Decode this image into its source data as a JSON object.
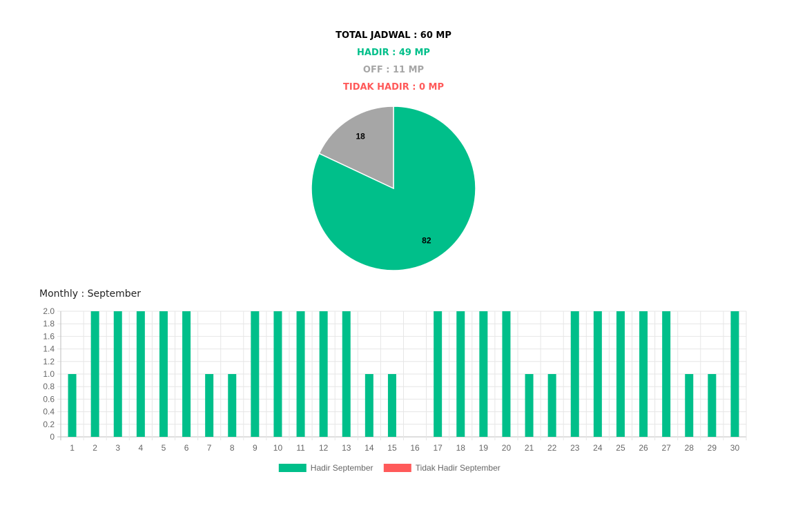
{
  "summary": {
    "total": "TOTAL JADWAL : 60 MP",
    "hadir": "HADIR : 49 MP",
    "off": "OFF : 11 MP",
    "tidak_hadir": "TIDAK HADIR : 0 MP"
  },
  "colors": {
    "hadir": "#00bf8a",
    "off": "#a6a6a6",
    "tidak_hadir": "#ff5a5a"
  },
  "monthly_title": "Monthly : September",
  "chart_data": [
    {
      "type": "pie",
      "slices": [
        {
          "label": "hadir",
          "value": 82,
          "color": "#00bf8a"
        },
        {
          "label": "off",
          "value": 18,
          "color": "#a6a6a6"
        }
      ],
      "data_labels": [
        "82",
        "18"
      ]
    },
    {
      "type": "bar",
      "categories": [
        "1",
        "2",
        "3",
        "4",
        "5",
        "6",
        "7",
        "8",
        "9",
        "10",
        "11",
        "12",
        "13",
        "14",
        "15",
        "16",
        "17",
        "18",
        "19",
        "20",
        "21",
        "22",
        "23",
        "24",
        "25",
        "26",
        "27",
        "28",
        "29",
        "30"
      ],
      "series": [
        {
          "name": "Hadir September",
          "color": "#00bf8a",
          "values": [
            1,
            2,
            2,
            2,
            2,
            2,
            1,
            1,
            2,
            2,
            2,
            2,
            2,
            1,
            1,
            0,
            2,
            2,
            2,
            2,
            1,
            1,
            2,
            2,
            2,
            2,
            2,
            1,
            1,
            2
          ]
        },
        {
          "name": "Tidak Hadir September",
          "color": "#ff5a5a",
          "values": [
            0,
            0,
            0,
            0,
            0,
            0,
            0,
            0,
            0,
            0,
            0,
            0,
            0,
            0,
            0,
            0,
            0,
            0,
            0,
            0,
            0,
            0,
            0,
            0,
            0,
            0,
            0,
            0,
            0,
            0
          ]
        }
      ],
      "ylim": [
        0,
        2
      ],
      "yticks": [
        "0",
        "0.2",
        "0.4",
        "0.6",
        "0.8",
        "1.0",
        "1.2",
        "1.4",
        "1.6",
        "1.8",
        "2.0"
      ],
      "grid": true,
      "legend": "bottom"
    }
  ]
}
